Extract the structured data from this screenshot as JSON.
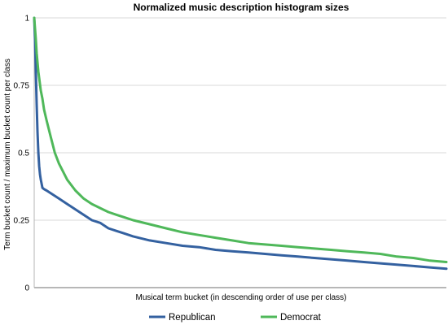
{
  "chart_data": {
    "type": "line",
    "title": "Normalized music description histogram sizes",
    "xlabel": "Musical term bucket (in descending order of use per class)",
    "ylabel": "Term bucket count / maximum bucket count per class",
    "ylim": [
      0,
      1
    ],
    "xlim": [
      0,
      500
    ],
    "y_ticks": [
      "0",
      "0.25",
      "0.5",
      "0.75",
      "1"
    ],
    "x_ticks": [],
    "grid": "horizontal",
    "legend_position": "bottom",
    "series": [
      {
        "name": "Republican",
        "color": "#3461a0",
        "x": [
          0,
          1,
          2,
          3,
          4,
          5,
          6,
          7,
          8,
          10,
          12,
          15,
          20,
          30,
          40,
          50,
          60,
          70,
          80,
          90,
          100,
          110,
          120,
          140,
          160,
          180,
          200,
          220,
          240,
          260,
          280,
          300,
          320,
          340,
          360,
          380,
          400,
          420,
          440,
          460,
          480,
          500
        ],
        "values": [
          1.0,
          0.92,
          0.8,
          0.68,
          0.58,
          0.5,
          0.45,
          0.42,
          0.4,
          0.37,
          0.365,
          0.36,
          0.35,
          0.33,
          0.31,
          0.29,
          0.27,
          0.25,
          0.24,
          0.22,
          0.21,
          0.2,
          0.19,
          0.175,
          0.165,
          0.155,
          0.15,
          0.14,
          0.135,
          0.13,
          0.125,
          0.12,
          0.115,
          0.11,
          0.105,
          0.1,
          0.095,
          0.09,
          0.085,
          0.08,
          0.075,
          0.07
        ]
      },
      {
        "name": "Democrat",
        "color": "#4fb85a",
        "x": [
          0,
          1,
          2,
          3,
          5,
          8,
          10,
          12,
          15,
          20,
          25,
          30,
          40,
          50,
          60,
          70,
          80,
          90,
          100,
          110,
          120,
          140,
          160,
          180,
          200,
          220,
          240,
          260,
          280,
          300,
          320,
          340,
          360,
          380,
          400,
          420,
          440,
          460,
          480,
          500
        ],
        "values": [
          1.0,
          0.96,
          0.92,
          0.87,
          0.8,
          0.73,
          0.7,
          0.66,
          0.62,
          0.56,
          0.5,
          0.46,
          0.4,
          0.36,
          0.33,
          0.31,
          0.295,
          0.28,
          0.27,
          0.26,
          0.25,
          0.235,
          0.22,
          0.205,
          0.195,
          0.185,
          0.175,
          0.165,
          0.16,
          0.155,
          0.15,
          0.145,
          0.14,
          0.135,
          0.13,
          0.125,
          0.115,
          0.11,
          0.1,
          0.095
        ]
      }
    ]
  }
}
